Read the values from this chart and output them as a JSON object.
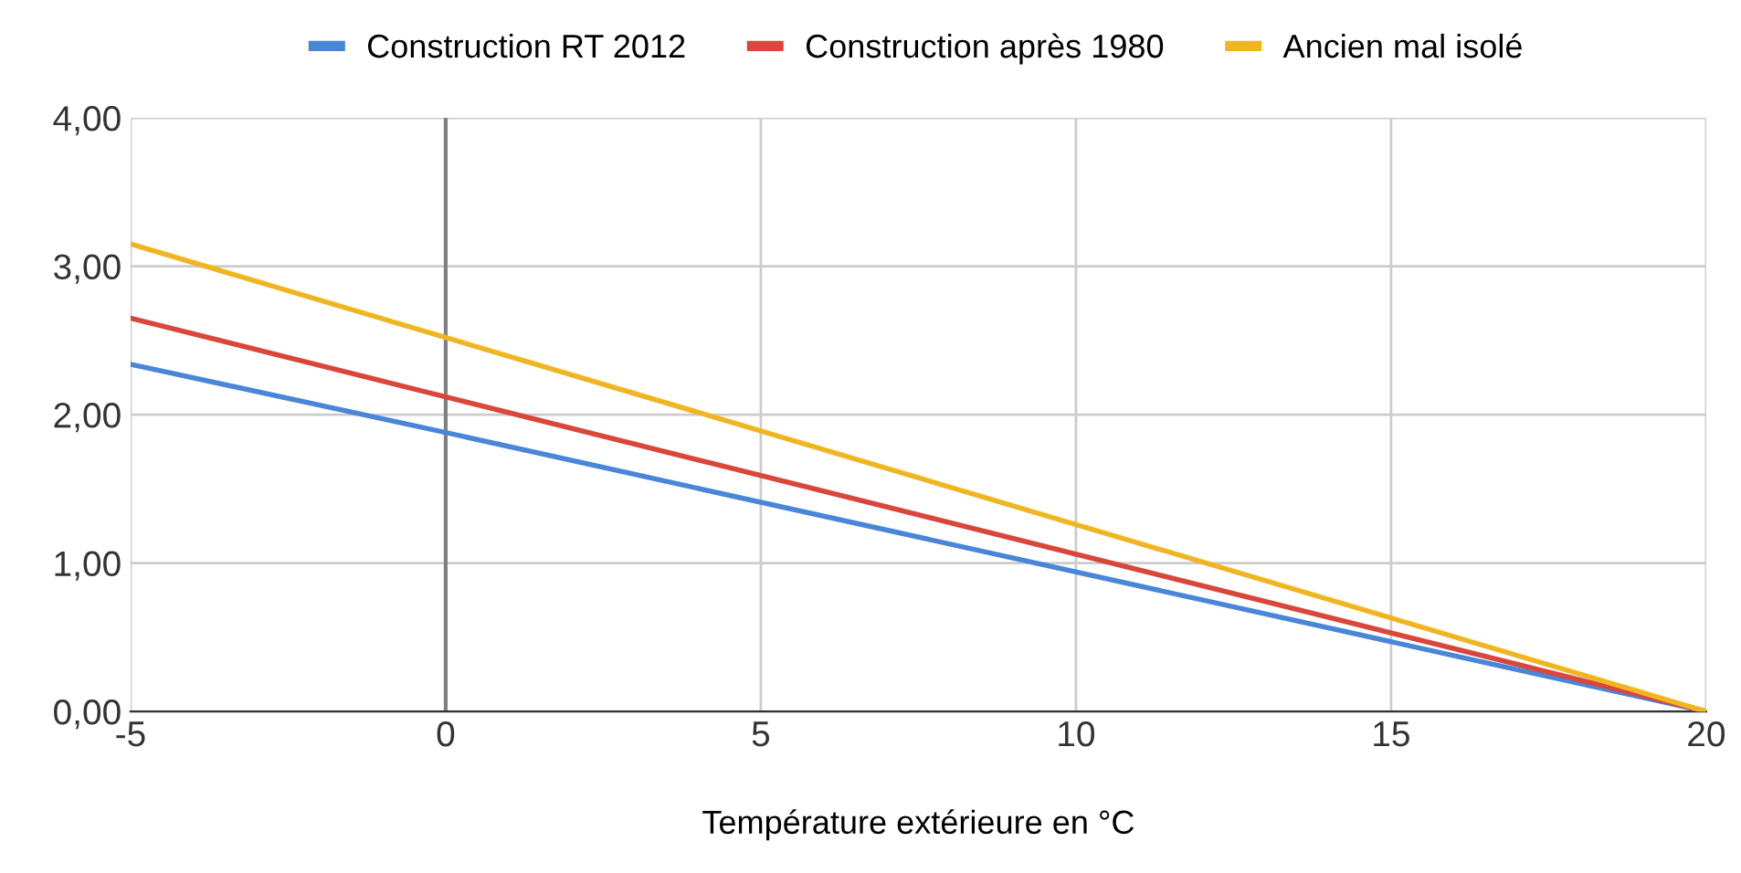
{
  "chart_data": {
    "type": "line",
    "xlabel": "Température extérieure en °C",
    "x": [
      -5,
      0,
      20
    ],
    "series": [
      {
        "name": "Construction RT 2012",
        "color": "#4a86d8",
        "values": [
          2.34,
          1.88,
          0
        ]
      },
      {
        "name": "Construction après 1980",
        "color": "#d9463b",
        "values": [
          2.65,
          2.12,
          0
        ]
      },
      {
        "name": "Ancien mal isolé",
        "color": "#f0b622",
        "values": [
          3.15,
          2.52,
          0
        ]
      }
    ],
    "xlim": [
      -5,
      20
    ],
    "xticks": [
      -5,
      0,
      5,
      10,
      15,
      20
    ],
    "ylim": [
      0,
      4
    ],
    "yticks": [
      {
        "value": 0,
        "label": "0,00"
      },
      {
        "value": 1,
        "label": "1,00"
      },
      {
        "value": 2,
        "label": "2,00"
      },
      {
        "value": 3,
        "label": "3,00"
      },
      {
        "value": 4,
        "label": "4,00"
      }
    ],
    "ref_lines": [
      {
        "axis": "x",
        "value": 0,
        "color": "#808080"
      }
    ],
    "grid": true,
    "legend": "top",
    "marker": "none",
    "line_style": "solid"
  }
}
